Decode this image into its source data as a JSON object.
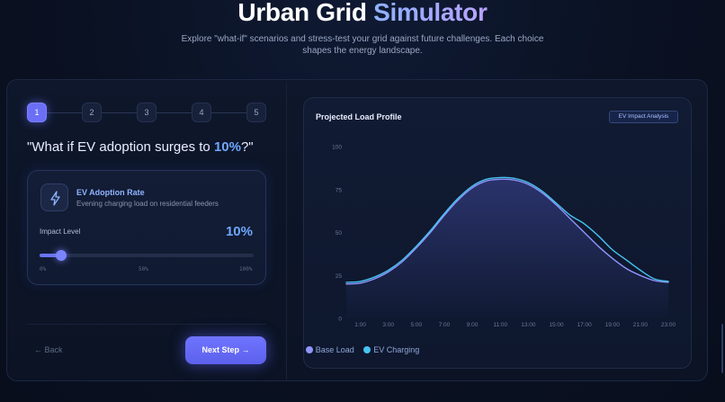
{
  "header": {
    "title_main": "Urban Grid",
    "title_accent": "Simulator",
    "subtitle": "Explore \"what-if\" scenarios and stress-test your grid against future challenges. Each choice shapes the energy landscape."
  },
  "stepper": {
    "steps": [
      "1",
      "2",
      "3",
      "4",
      "5"
    ],
    "active_index": 0
  },
  "question": {
    "prefix": "\"What if EV adoption surges to ",
    "value": "10%",
    "suffix": "?\""
  },
  "scenario_card": {
    "icon": "lightning-bolt-icon",
    "title": "EV Adoption Rate",
    "subtitle": "Evening charging load on residential feeders",
    "impact_label": "Impact Level",
    "impact_value": "10%",
    "slider_fraction": 0.1,
    "ticks": [
      "0%",
      "50%",
      "100%"
    ]
  },
  "nav": {
    "back_label": "← Back",
    "next_label": "Next Step →"
  },
  "chart_header": {
    "title": "Projected Load Profile",
    "badge": "EV Impact Analysis"
  },
  "colors": {
    "accent": "#6a6ff6",
    "base_load": "#8f95ff",
    "ev_charging": "#46c3f0"
  },
  "chart_data": {
    "type": "line",
    "title": "Projected Load Profile",
    "xlabel": "",
    "ylabel": "",
    "ylim": [
      0,
      100
    ],
    "yticks": [
      0,
      25,
      50,
      75,
      100
    ],
    "x": [
      "0:00",
      "1:00",
      "2:00",
      "3:00",
      "4:00",
      "5:00",
      "6:00",
      "7:00",
      "8:00",
      "9:00",
      "10:00",
      "11:00",
      "12:00",
      "13:00",
      "14:00",
      "15:00",
      "16:00",
      "17:00",
      "18:00",
      "19:00",
      "20:00",
      "21:00",
      "22:00",
      "23:00"
    ],
    "xtick_labels": [
      "1:00",
      "3:00",
      "5:00",
      "7:00",
      "9:00",
      "11:00",
      "13:00",
      "15:00",
      "17:00",
      "19:00",
      "21:00",
      "23:00"
    ],
    "series": [
      {
        "name": "Base Load",
        "values": [
          20,
          20.5,
          23,
          27,
          33,
          41,
          50,
          60,
          69,
          76,
          80,
          81,
          80.5,
          78,
          73,
          66,
          58,
          50,
          42,
          35,
          29,
          25,
          22,
          21
        ]
      },
      {
        "name": "EV Charging",
        "values": [
          21,
          21.5,
          24,
          28,
          34,
          42,
          51,
          61,
          70,
          77,
          81,
          82,
          81.5,
          79,
          74,
          67,
          60,
          55,
          48,
          40,
          34,
          28,
          23,
          21.5
        ]
      }
    ],
    "legend": "bottom-center",
    "grid": false
  }
}
